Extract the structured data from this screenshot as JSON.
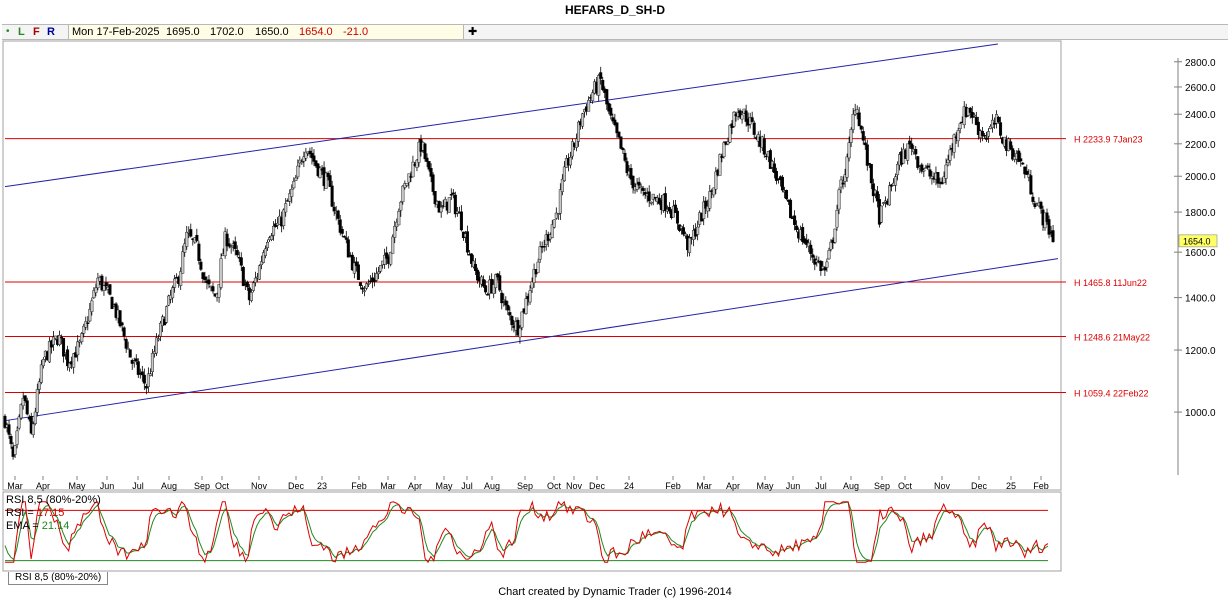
{
  "title": "HEFARS_D_SH-D",
  "info_bar": {
    "dot": "•",
    "l": "L",
    "f": "F",
    "r": "R",
    "date": "Mon 17-Feb-2025",
    "open": "1695.0",
    "high": "1702.0",
    "low": "1650.0",
    "close": "1654.0",
    "change": "-21.0",
    "plus": "✚"
  },
  "colors": {
    "candle_up": "#c8c8c8",
    "candle_down": "#000000",
    "trend": "#2222aa",
    "horizontal": "#dd0000",
    "rsi": "#dd0000",
    "ema": "#228822",
    "price_tag_bg": "#ffff66"
  },
  "chart_data": {
    "type": "candlestick",
    "y_axis": {
      "ticks": [
        "2800.0",
        "2600.0",
        "2400.0",
        "2200.0",
        "2000.0",
        "1800.0",
        "1600.0",
        "1400.0",
        "1200.0",
        "1000.0"
      ],
      "tick_values": [
        2800,
        2600,
        2400,
        2200,
        2000,
        1800,
        1600,
        1400,
        1200,
        1000
      ],
      "scale": "log",
      "range": [
        800,
        2950
      ]
    },
    "x_axis": {
      "labels": [
        "Mar",
        "Apr",
        "May",
        "Jun",
        "Jul",
        "Aug",
        "Sep",
        "Oct",
        "Nov",
        "Dec",
        "23",
        "Feb",
        "Mar",
        "Apr",
        "May",
        "Jul",
        "Aug",
        "Sep",
        "Oct",
        "Nov",
        "Dec",
        "24",
        "Feb",
        "Mar",
        "Apr",
        "May",
        "Jun",
        "Jul",
        "Aug",
        "Sep",
        "Oct",
        "Nov",
        "Dec",
        "25",
        "Feb"
      ],
      "range": [
        "2022-03-01",
        "2025-02-20"
      ]
    },
    "price_path": [
      [
        "2022-03-01",
        980
      ],
      [
        "2022-03-10",
        860
      ],
      [
        "2022-03-20",
        1050
      ],
      [
        "2022-03-28",
        930
      ],
      [
        "2022-04-10",
        1170
      ],
      [
        "2022-04-25",
        1250
      ],
      [
        "2022-05-05",
        1160
      ],
      [
        "2022-05-18",
        1220
      ],
      [
        "2022-05-28",
        1350
      ],
      [
        "2022-06-05",
        1480
      ],
      [
        "2022-06-20",
        1380
      ],
      [
        "2022-07-01",
        1260
      ],
      [
        "2022-07-10",
        1160
      ],
      [
        "2022-07-25",
        1080
      ],
      [
        "2022-08-05",
        1230
      ],
      [
        "2022-08-18",
        1390
      ],
      [
        "2022-08-28",
        1500
      ],
      [
        "2022-09-05",
        1680
      ],
      [
        "2022-09-15",
        1620
      ],
      [
        "2022-09-25",
        1450
      ],
      [
        "2022-10-05",
        1400
      ],
      [
        "2022-10-15",
        1680
      ],
      [
        "2022-10-28",
        1560
      ],
      [
        "2022-11-08",
        1390
      ],
      [
        "2022-11-18",
        1520
      ],
      [
        "2022-11-28",
        1700
      ],
      [
        "2022-12-10",
        1740
      ],
      [
        "2022-12-25",
        1950
      ],
      [
        "2023-01-05",
        2200
      ],
      [
        "2023-01-15",
        2080
      ],
      [
        "2023-01-28",
        1960
      ],
      [
        "2023-02-05",
        1800
      ],
      [
        "2023-02-15",
        1650
      ],
      [
        "2023-02-25",
        1520
      ],
      [
        "2023-03-08",
        1440
      ],
      [
        "2023-03-20",
        1500
      ],
      [
        "2023-04-01",
        1580
      ],
      [
        "2023-04-12",
        1850
      ],
      [
        "2023-04-25",
        2050
      ],
      [
        "2023-05-05",
        2200
      ],
      [
        "2023-05-15",
        1950
      ],
      [
        "2023-05-25",
        1800
      ],
      [
        "2023-06-05",
        1880
      ],
      [
        "2023-06-15",
        1750
      ],
      [
        "2023-06-28",
        1520
      ],
      [
        "2023-07-10",
        1430
      ],
      [
        "2023-07-22",
        1470
      ],
      [
        "2023-08-01",
        1340
      ],
      [
        "2023-08-12",
        1280
      ],
      [
        "2023-08-22",
        1400
      ],
      [
        "2023-09-01",
        1550
      ],
      [
        "2023-09-12",
        1680
      ],
      [
        "2023-09-22",
        1800
      ],
      [
        "2023-10-01",
        2050
      ],
      [
        "2023-10-10",
        2200
      ],
      [
        "2023-10-18",
        2400
      ],
      [
        "2023-10-28",
        2550
      ],
      [
        "2023-11-06",
        2650
      ],
      [
        "2023-11-15",
        2380
      ],
      [
        "2023-11-25",
        2200
      ],
      [
        "2023-12-05",
        2000
      ],
      [
        "2023-12-18",
        1900
      ],
      [
        "2023-12-30",
        1880
      ],
      [
        "2024-01-15",
        1840
      ],
      [
        "2024-01-28",
        1720
      ],
      [
        "2024-02-05",
        1620
      ],
      [
        "2024-02-15",
        1750
      ],
      [
        "2024-02-28",
        1900
      ],
      [
        "2024-03-08",
        2100
      ],
      [
        "2024-03-18",
        2300
      ],
      [
        "2024-03-26",
        2450
      ],
      [
        "2024-04-05",
        2380
      ],
      [
        "2024-04-15",
        2250
      ],
      [
        "2024-04-25",
        2150
      ],
      [
        "2024-05-05",
        2000
      ],
      [
        "2024-05-15",
        1850
      ],
      [
        "2024-05-26",
        1720
      ],
      [
        "2024-06-05",
        1640
      ],
      [
        "2024-06-15",
        1560
      ],
      [
        "2024-06-25",
        1510
      ],
      [
        "2024-07-02",
        1650
      ],
      [
        "2024-07-10",
        1920
      ],
      [
        "2024-07-18",
        2100
      ],
      [
        "2024-07-26",
        2500
      ],
      [
        "2024-08-02",
        2250
      ],
      [
        "2024-08-10",
        2000
      ],
      [
        "2024-08-20",
        1770
      ],
      [
        "2024-08-30",
        1900
      ],
      [
        "2024-09-10",
        2100
      ],
      [
        "2024-09-22",
        2200
      ],
      [
        "2024-10-01",
        2060
      ],
      [
        "2024-10-12",
        2000
      ],
      [
        "2024-10-22",
        1950
      ],
      [
        "2024-11-01",
        2150
      ],
      [
        "2024-11-10",
        2350
      ],
      [
        "2024-11-20",
        2450
      ],
      [
        "2024-11-30",
        2300
      ],
      [
        "2024-12-08",
        2250
      ],
      [
        "2024-12-18",
        2350
      ],
      [
        "2024-12-28",
        2200
      ],
      [
        "2025-01-08",
        2130
      ],
      [
        "2025-01-18",
        2020
      ],
      [
        "2025-01-28",
        1850
      ],
      [
        "2025-02-06",
        1760
      ],
      [
        "2025-02-17",
        1654
      ]
    ],
    "last_price": "1654.0",
    "trend_lines": [
      {
        "from": [
          "2022-03-01",
          1940
        ],
        "to": [
          "2024-12-20",
          2950
        ]
      },
      {
        "from": [
          "2022-03-01",
          975
        ],
        "to": [
          "2025-02-20",
          1570
        ]
      }
    ],
    "horizontal_lines": [
      {
        "value": 2233.9,
        "label": "H 2233.9 7Jan23"
      },
      {
        "value": 1465.8,
        "label": "H 1465.8 11Jun22"
      },
      {
        "value": 1248.6,
        "label": "H 1248.6 21May22"
      },
      {
        "value": 1059.4,
        "label": "H 1059.4 22Feb22"
      }
    ],
    "rsi_panel": {
      "title": "RSI 8,5 (80%-20%)",
      "rsi_label": "RSI =",
      "rsi_value": "17.15",
      "ema_label": "EMA =",
      "ema_value": "21.14",
      "upper": 80,
      "lower": 20,
      "range": [
        0,
        100
      ]
    }
  },
  "rsi_tab": "RSI 8,5 (80%-20%)",
  "footer": "Chart created by Dynamic Trader  (c) 1996-2014"
}
